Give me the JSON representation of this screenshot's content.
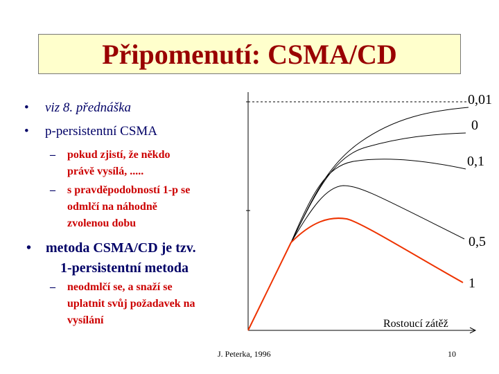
{
  "title": "Připomenutí: CSMA/CD",
  "bullets": [
    {
      "text": "viz 8. přednáška"
    },
    {
      "text": "p-persistentní CSMA",
      "subs": [
        {
          "lines": [
            "pokud zjistí, že někdo",
            "právě vysílá, ....."
          ]
        },
        {
          "lines": [
            "s pravděpodobností 1-p se",
            "odmlčí na náhodně",
            "zvolenou dobu"
          ]
        }
      ]
    },
    {
      "lines": [
        "metoda CSMA/CD je tzv.",
        "1-persistentní metoda"
      ],
      "subs": [
        {
          "lines": [
            "neodmlčí se, a snaží se",
            "uplatnit svůj požadavek na",
            "vysílání"
          ]
        }
      ]
    }
  ],
  "bullet_symbol": "•",
  "dash_symbol": "–",
  "chart_data": {
    "type": "line",
    "xlabel": "Rostoucí zátěž",
    "ylabel": "",
    "series": [
      {
        "name": "0,01"
      },
      {
        "name": "0"
      },
      {
        "name": "0,1"
      },
      {
        "name": "0,5"
      },
      {
        "name": "1",
        "color": "#ee3300"
      }
    ]
  },
  "footer": {
    "author": "J. Peterka, 1996",
    "page": "10"
  }
}
